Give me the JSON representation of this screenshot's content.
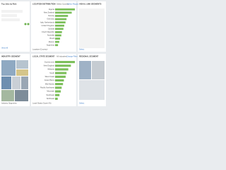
{
  "left_top": {
    "title": "Top Jobs by Role",
    "link": "View All"
  },
  "location": {
    "title": "LOCATION DISTRIBUTION",
    "filter": "Select Country",
    "link": "Select Region",
    "footer": "Location (Country)",
    "categories": [
      "Algeria",
      "New Zealand",
      "Norway",
      "Germany",
      "Italy, Netherlands",
      "United Kingdom",
      "Canada",
      "Czech Republic",
      "Australia",
      "Brazil",
      "Mexico",
      "Argentina"
    ],
    "values": [
      95,
      80,
      62,
      55,
      50,
      44,
      40,
      33,
      30,
      24,
      20,
      14
    ]
  },
  "right_top": {
    "title": "VISUAL LINK SEGMENTS",
    "link": "Select"
  },
  "treemap": {
    "title": "INDUSTRY SEGMENT",
    "footer": "Industry Segments"
  },
  "state": {
    "title": "LOCAL STATE SEGMENT",
    "filter": "All Industries",
    "link": "Change Filter",
    "footer": "Local Status Score (%)",
    "categories": [
      "Government",
      "New England",
      "Midwest",
      "South",
      "West Coast",
      "Great Plains",
      "Mid Atlantic",
      "Pacific Northwest",
      "Mountain",
      "Southeast",
      "Northeast"
    ],
    "values": [
      90,
      72,
      60,
      52,
      48,
      40,
      36,
      30,
      26,
      20,
      12
    ]
  },
  "right_bottom": {
    "title": "REGIONAL SEGMENT",
    "link": "Select"
  }
}
